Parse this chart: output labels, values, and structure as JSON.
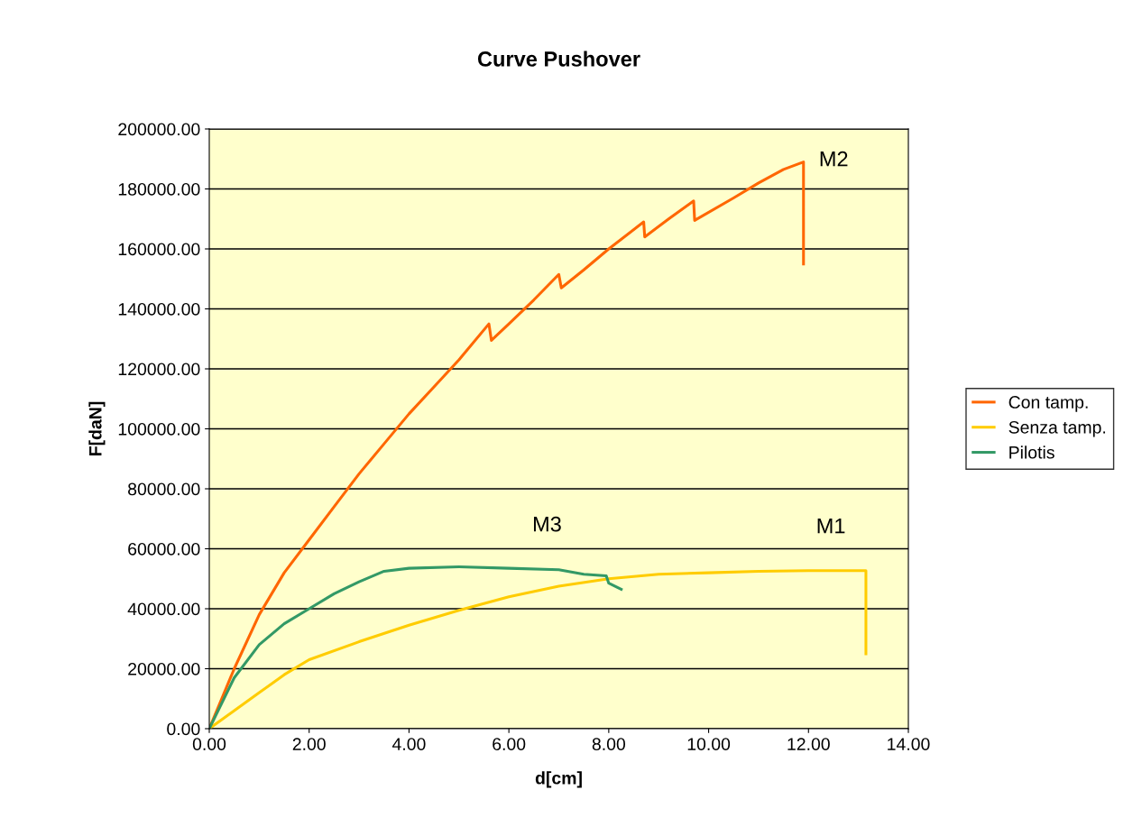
{
  "chart_data": {
    "type": "line",
    "title": "Curve Pushover",
    "xlabel": "d[cm]",
    "ylabel": "F[daN]",
    "xlim": [
      0,
      14
    ],
    "ylim": [
      0,
      200000
    ],
    "xticks": [
      {
        "value": 0,
        "label": "0.00"
      },
      {
        "value": 2,
        "label": "2.00"
      },
      {
        "value": 4,
        "label": "4.00"
      },
      {
        "value": 6,
        "label": "6.00"
      },
      {
        "value": 8,
        "label": "8.00"
      },
      {
        "value": 10,
        "label": "10.00"
      },
      {
        "value": 12,
        "label": "12.00"
      },
      {
        "value": 14,
        "label": "14.00"
      }
    ],
    "yticks": [
      {
        "value": 0,
        "label": "0.00"
      },
      {
        "value": 20000,
        "label": "20000.00"
      },
      {
        "value": 40000,
        "label": "40000.00"
      },
      {
        "value": 60000,
        "label": "60000.00"
      },
      {
        "value": 80000,
        "label": "80000.00"
      },
      {
        "value": 100000,
        "label": "100000.00"
      },
      {
        "value": 120000,
        "label": "120000.00"
      },
      {
        "value": 140000,
        "label": "140000.00"
      },
      {
        "value": 160000,
        "label": "160000.00"
      },
      {
        "value": 180000,
        "label": "180000.00"
      },
      {
        "value": 200000,
        "label": "200000.00"
      }
    ],
    "grid": "y",
    "legend": "right",
    "series": [
      {
        "name": "Con tamp.",
        "color": "#ff6600",
        "x": [
          0,
          0.5,
          1,
          1.5,
          2,
          2.5,
          3,
          3.5,
          4,
          4.5,
          5,
          5.6,
          5.65,
          6,
          6.5,
          7,
          7.05,
          7.5,
          8,
          8.7,
          8.72,
          9.2,
          9.7,
          9.72,
          10.5,
          11,
          11.5,
          11.9,
          11.9
        ],
        "values": [
          0,
          20000,
          38000,
          52000,
          63000,
          74000,
          85000,
          95000,
          105000,
          114000,
          123000,
          135000,
          129500,
          135000,
          143000,
          151500,
          147000,
          153000,
          160000,
          169000,
          164000,
          170000,
          176000,
          169500,
          177000,
          182000,
          186500,
          189000,
          155000
        ]
      },
      {
        "name": "Senza tamp.",
        "color": "#ffcc00",
        "x": [
          0,
          0.5,
          1,
          1.5,
          2,
          3,
          4,
          5,
          6,
          7,
          8,
          9,
          10,
          11,
          12,
          13.15,
          13.15
        ],
        "values": [
          0,
          6000,
          12000,
          18000,
          23000,
          29000,
          34500,
          39500,
          44000,
          47500,
          50000,
          51500,
          52000,
          52500,
          52700,
          52700,
          25000
        ]
      },
      {
        "name": "Pilotis",
        "color": "#339966",
        "x": [
          0,
          0.5,
          1,
          1.5,
          2,
          2.5,
          3,
          3.5,
          4,
          5,
          6,
          7,
          7.5,
          7.95,
          8,
          8.25
        ],
        "values": [
          0,
          17000,
          28000,
          35000,
          40000,
          45000,
          49000,
          52500,
          53500,
          54000,
          53500,
          53000,
          51500,
          51000,
          48500,
          46500
        ]
      }
    ],
    "annotations": [
      "M2",
      "M3",
      "M1"
    ]
  }
}
